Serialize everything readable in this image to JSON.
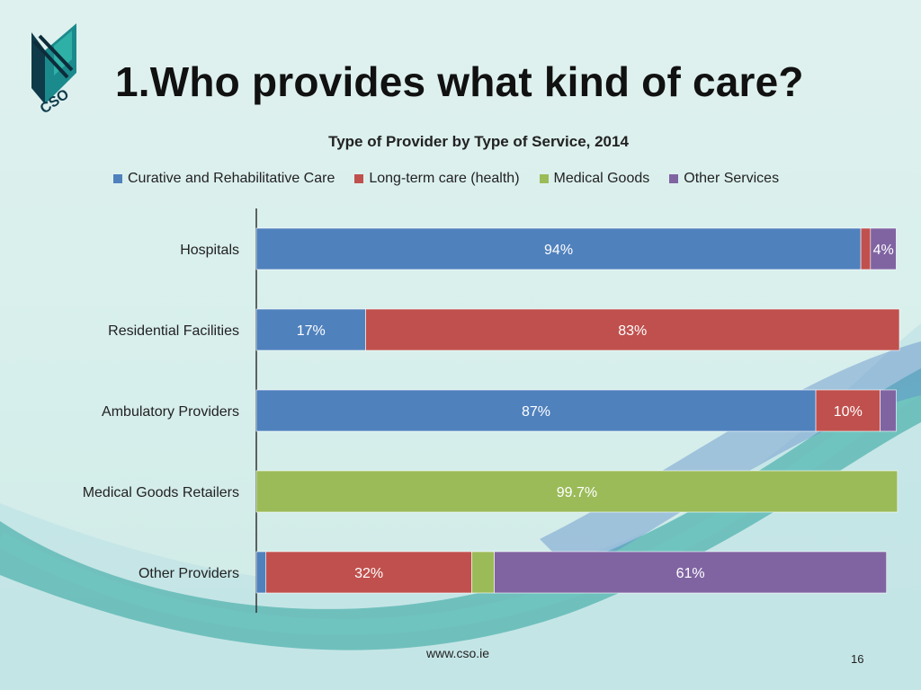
{
  "title": "1.Who provides what kind of care?",
  "logo_text": "CSO",
  "footer": "www.cso.ie",
  "page_number": "16",
  "colors": {
    "curative": "#4f81bd",
    "longterm": "#c0504d",
    "medical": "#9bbb59",
    "other": "#8064a2"
  },
  "chart_data": {
    "type": "bar",
    "orientation": "horizontal",
    "stacked": true,
    "title": "Type of Provider by Type of Service, 2014",
    "categories": [
      "Hospitals",
      "Residential Facilities",
      "Ambulatory Providers",
      "Medical Goods Retailers",
      "Other Providers"
    ],
    "series": [
      {
        "name": "Curative and Rehabilitative Care",
        "color_key": "curative",
        "values": [
          94,
          17,
          87,
          0,
          1.5
        ],
        "labels": [
          "94%",
          "17%",
          "87%",
          "",
          ""
        ]
      },
      {
        "name": "Long-term care (health)",
        "color_key": "longterm",
        "values": [
          1.5,
          83,
          10,
          0,
          32
        ],
        "labels": [
          "",
          "83%",
          "10%",
          "",
          "32%"
        ]
      },
      {
        "name": "Medical Goods",
        "color_key": "medical",
        "values": [
          0,
          0,
          0,
          99.7,
          3.5
        ],
        "labels": [
          "",
          "",
          "",
          "99.7%",
          ""
        ]
      },
      {
        "name": "Other Services",
        "color_key": "other",
        "values": [
          4,
          0,
          2.5,
          0,
          61
        ],
        "labels": [
          "4%",
          "",
          "",
          "",
          "61%"
        ]
      }
    ],
    "xlim": [
      0,
      100
    ],
    "legend_position": "top"
  }
}
